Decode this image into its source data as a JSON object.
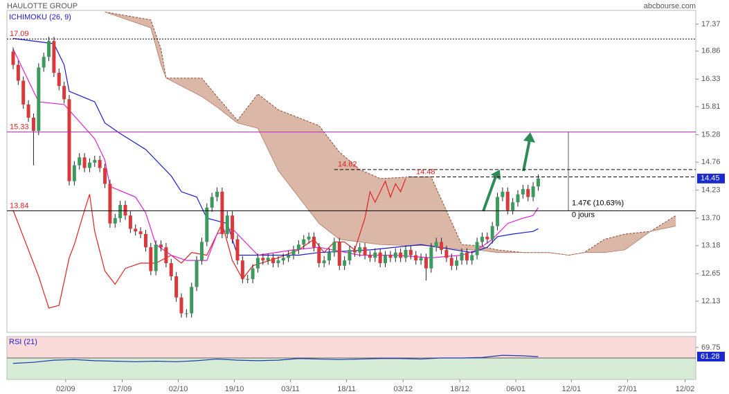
{
  "chart_data": {
    "type": "candlestick",
    "title": "HAULOTTE GROUP",
    "source": "abcbourse.com",
    "indicator": "ICHIMOKU (26, 9)",
    "up_color": "#3c9a5f",
    "down_color": "#d9393b",
    "open": [
      16.85,
      16.6,
      16.3,
      15.85,
      15.6,
      15.35,
      16.55,
      16.75,
      17.05,
      16.45,
      16.2,
      15.95,
      14.4,
      14.7,
      14.85,
      14.65,
      14.75,
      14.8,
      14.65,
      14.35,
      13.6,
      13.7,
      13.95,
      13.75,
      13.5,
      13.45,
      13.4,
      13.15,
      12.7,
      13.2,
      13.15,
      12.85,
      12.6,
      12.2,
      11.9,
      11.9,
      12.4,
      12.9,
      13.25,
      13.9,
      14.1,
      14.2,
      13.4,
      13.75,
      13.3,
      12.9,
      12.55,
      12.55,
      12.75,
      12.95,
      12.9,
      12.95,
      12.85,
      12.9,
      12.95,
      13.0,
      13.1,
      13.2,
      13.3,
      13.35,
      13.15,
      12.85,
      12.9,
      13.05,
      13.25,
      12.8,
      12.9,
      13.1,
      13.05,
      13.15,
      13.0,
      12.95,
      13.05,
      12.85,
      13.0,
      12.95,
      13.05,
      12.95,
      13.1,
      13.0,
      12.9,
      12.95,
      12.75,
      13.15,
      13.25,
      13.1,
      12.95,
      12.8,
      12.9,
      13.05,
      12.9,
      13.0,
      13.25,
      13.35,
      13.3,
      13.55,
      14.1,
      14.2,
      13.85,
      14.0,
      14.15,
      14.25,
      14.1,
      14.3
    ],
    "high": [
      16.93,
      16.68,
      16.38,
      15.93,
      15.68,
      16.63,
      16.83,
      17.13,
      17.13,
      16.53,
      16.28,
      16.03,
      14.78,
      14.93,
      14.93,
      14.83,
      14.88,
      14.88,
      14.73,
      14.43,
      13.78,
      14.03,
      14.03,
      13.83,
      13.58,
      13.53,
      13.48,
      13.23,
      13.28,
      13.28,
      13.23,
      12.93,
      12.68,
      12.28,
      11.98,
      12.48,
      12.98,
      13.33,
      13.98,
      14.18,
      14.28,
      14.28,
      13.83,
      13.83,
      13.38,
      12.98,
      12.63,
      12.83,
      13.03,
      13.03,
      13.03,
      13.03,
      12.98,
      13.03,
      13.08,
      13.18,
      13.28,
      13.38,
      13.43,
      13.43,
      13.23,
      12.98,
      13.13,
      13.33,
      13.33,
      12.98,
      13.18,
      13.18,
      13.23,
      13.23,
      13.08,
      13.13,
      13.13,
      13.08,
      13.08,
      13.13,
      13.13,
      13.18,
      13.18,
      13.08,
      13.03,
      13.03,
      13.23,
      13.33,
      13.33,
      13.18,
      13.03,
      12.98,
      13.13,
      13.13,
      13.08,
      13.33,
      13.43,
      13.43,
      13.63,
      14.18,
      14.28,
      14.28,
      14.08,
      14.23,
      14.33,
      14.33,
      14.38,
      14.53
    ],
    "low": [
      16.52,
      16.22,
      15.77,
      15.52,
      14.7,
      15.27,
      16.47,
      16.67,
      16.37,
      16.12,
      15.87,
      14.32,
      14.32,
      14.62,
      14.57,
      14.57,
      14.67,
      14.57,
      14.27,
      13.52,
      13.52,
      13.62,
      13.67,
      13.42,
      13.37,
      13.32,
      13.07,
      12.62,
      12.62,
      13.07,
      12.77,
      12.52,
      12.12,
      11.82,
      11.82,
      11.82,
      12.32,
      12.82,
      13.17,
      13.82,
      14.02,
      13.32,
      13.32,
      13.22,
      12.82,
      12.47,
      12.47,
      12.47,
      12.67,
      12.82,
      12.82,
      12.77,
      12.77,
      12.82,
      12.87,
      12.92,
      13.02,
      13.12,
      13.22,
      13.07,
      12.77,
      12.77,
      12.82,
      12.97,
      12.72,
      12.72,
      12.82,
      12.97,
      12.97,
      12.92,
      12.87,
      12.87,
      12.77,
      12.77,
      12.87,
      12.87,
      12.87,
      12.87,
      12.92,
      12.82,
      12.82,
      12.52,
      12.67,
      13.07,
      13.02,
      12.87,
      12.72,
      12.72,
      12.82,
      12.82,
      12.82,
      12.92,
      13.17,
      13.22,
      13.22,
      13.47,
      14.02,
      13.77,
      13.77,
      13.92,
      14.07,
      14.02,
      14.02,
      14.22
    ],
    "close": [
      16.6,
      16.3,
      15.85,
      15.6,
      15.35,
      16.55,
      16.75,
      17.05,
      16.45,
      16.2,
      15.95,
      14.4,
      14.7,
      14.85,
      14.65,
      14.75,
      14.8,
      14.65,
      14.35,
      13.6,
      13.7,
      13.95,
      13.75,
      13.5,
      13.45,
      13.4,
      13.15,
      12.7,
      13.2,
      13.15,
      12.85,
      12.6,
      12.2,
      11.9,
      11.9,
      12.4,
      12.9,
      13.25,
      13.9,
      14.1,
      14.2,
      13.4,
      13.75,
      13.3,
      12.9,
      12.55,
      12.55,
      12.75,
      12.95,
      12.9,
      12.95,
      12.85,
      12.9,
      12.95,
      13.0,
      13.1,
      13.2,
      13.3,
      13.35,
      13.15,
      12.85,
      12.9,
      13.05,
      13.25,
      12.8,
      12.9,
      13.1,
      13.05,
      13.15,
      13.0,
      12.95,
      13.05,
      12.85,
      13.0,
      12.95,
      13.05,
      12.95,
      13.1,
      13.0,
      12.9,
      12.95,
      12.75,
      13.15,
      13.25,
      13.1,
      12.95,
      12.8,
      12.9,
      13.05,
      12.9,
      13.0,
      13.25,
      13.35,
      13.3,
      13.55,
      14.1,
      14.2,
      13.85,
      14.0,
      14.15,
      14.25,
      14.1,
      14.3,
      14.45
    ],
    "xlim": [
      -1.22,
      133.9
    ],
    "ylim": [
      11.54,
      17.63
    ],
    "xticks": [
      {
        "value": 10.3,
        "label": "02/09"
      },
      {
        "value": 21.4,
        "label": "17/09"
      },
      {
        "value": 32.4,
        "label": "02/10"
      },
      {
        "value": 43.4,
        "label": "19/10"
      },
      {
        "value": 54.4,
        "label": "03/11"
      },
      {
        "value": 65.4,
        "label": "18/11"
      },
      {
        "value": 76.5,
        "label": "03/12"
      },
      {
        "value": 87.6,
        "label": "18/12"
      },
      {
        "value": 98.6,
        "label": "06/01"
      },
      {
        "value": 109.5,
        "label": "12/01"
      },
      {
        "value": 120.5,
        "label": "27/01"
      },
      {
        "value": 131.8,
        "label": "12/02"
      }
    ],
    "yticks": [
      17.37,
      16.86,
      16.33,
      15.81,
      15.28,
      14.76,
      14.23,
      {
        "value": 13.7,
        "label": "13.70"
      },
      13.18,
      12.65,
      12.13
    ],
    "tenkan": {
      "color": "#e020d0",
      "x": [
        0,
        2,
        5,
        10,
        16,
        18,
        19,
        24,
        26,
        28,
        31,
        34,
        38,
        40,
        43,
        45,
        48,
        55,
        60,
        68,
        75,
        82,
        88,
        91,
        94,
        97,
        100,
        102,
        103
      ],
      "values": [
        16.9,
        16.5,
        15.9,
        15.85,
        15.2,
        14.8,
        14.3,
        14.1,
        13.8,
        13.2,
        13.0,
        12.9,
        12.9,
        13.4,
        13.5,
        13.3,
        13.0,
        13.1,
        13.15,
        13.0,
        13.0,
        12.95,
        13.0,
        13.1,
        13.3,
        13.6,
        13.7,
        13.75,
        13.9
      ]
    },
    "kijun": {
      "color": "#1a1ad0",
      "x": [
        0,
        8,
        10,
        11,
        16,
        18,
        21,
        26,
        31,
        33,
        36,
        38,
        42,
        44,
        50,
        56,
        60,
        70,
        80,
        90,
        93,
        95,
        98,
        102,
        103
      ],
      "values": [
        17.1,
        17.0,
        16.6,
        16.1,
        15.9,
        15.5,
        15.3,
        15.0,
        14.5,
        14.2,
        14.1,
        13.7,
        13.6,
        13.0,
        13.0,
        13.0,
        13.05,
        13.1,
        13.2,
        13.05,
        13.15,
        13.35,
        13.4,
        13.45,
        13.5
      ]
    },
    "chikou": {
      "color": "#e02020",
      "x": [
        0,
        2,
        5,
        7,
        9,
        11,
        12,
        14,
        15,
        16,
        18,
        20,
        22,
        25,
        28,
        31,
        33,
        35,
        38,
        41,
        43,
        45,
        47,
        52,
        56,
        59,
        61,
        63,
        65,
        67,
        69,
        70,
        71,
        73,
        74,
        75,
        76,
        77
      ],
      "values": [
        13.85,
        13.35,
        12.6,
        12.0,
        12.05,
        12.95,
        13.2,
        13.85,
        14.15,
        13.45,
        12.7,
        12.45,
        12.75,
        12.85,
        12.85,
        13.0,
        12.85,
        13.05,
        13.0,
        13.6,
        12.9,
        12.55,
        12.8,
        12.95,
        13.1,
        13.3,
        13.05,
        13.25,
        13.25,
        13.1,
        13.7,
        14.2,
        14.0,
        14.4,
        14.1,
        14.35,
        14.2,
        14.45
      ]
    },
    "cloud": {
      "color": "#c8907a",
      "x": [
        18,
        27,
        29,
        30,
        37,
        40,
        44,
        48,
        52,
        60,
        64,
        68,
        72,
        78,
        82,
        88,
        91,
        95,
        100,
        105,
        109,
        112,
        116,
        120,
        125,
        130
      ],
      "span_b": [
        17.6,
        17.45,
        16.9,
        16.35,
        16.35,
        16.0,
        15.55,
        16.05,
        15.75,
        15.45,
        14.95,
        14.62,
        14.45,
        14.48,
        14.48,
        13.2,
        13.18,
        13.1,
        13.05,
        13.05,
        13.0,
        13.05,
        13.3,
        13.4,
        13.45,
        13.75
      ],
      "span_a": [
        17.6,
        17.3,
        16.6,
        16.35,
        16.0,
        15.8,
        15.5,
        15.4,
        14.6,
        13.6,
        13.3,
        13.25,
        13.2,
        13.18,
        13.18,
        13.1,
        13.1,
        13.05,
        13.05,
        13.05,
        13.0,
        13.05,
        13.05,
        13.1,
        13.45,
        13.55
      ]
    },
    "levels": [
      {
        "value": 17.09,
        "color": "#000000",
        "style": "dotted"
      },
      {
        "value": 15.33,
        "color": "#c020c0",
        "style": "solid"
      },
      {
        "value": 13.84,
        "color": "#000000",
        "style": "solid"
      },
      {
        "value": 14.62,
        "color": "#000000",
        "style": "dashed"
      },
      {
        "value": 14.48,
        "color": "#000000",
        "style": "dashed"
      }
    ],
    "measure_text": "1.47€ (10.63%)",
    "measure_days": "0 jours",
    "rsi": {
      "title": "RSI (21)",
      "color": "#1a3ab0",
      "ylim": [
        40,
        80
      ],
      "yticks": [
        69.75
      ],
      "x": [
        0,
        4,
        8,
        12,
        16,
        20,
        24,
        28,
        32,
        36,
        40,
        44,
        48,
        52,
        56,
        60,
        64,
        68,
        72,
        76,
        80,
        84,
        88,
        92,
        96,
        100,
        103
      ],
      "values": [
        55,
        56,
        58,
        58.5,
        57.5,
        57,
        56.5,
        57,
        56.5,
        57.5,
        59,
        58,
        57.5,
        58,
        59.5,
        59,
        58.5,
        59,
        59.5,
        59.5,
        59,
        60,
        60,
        60.5,
        62.5,
        62,
        61.28
      ]
    }
  }
}
